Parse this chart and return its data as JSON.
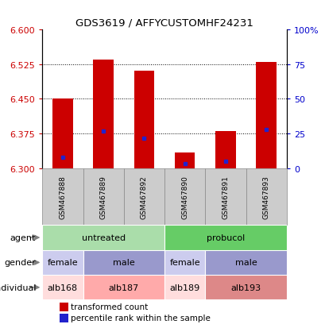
{
  "title": "GDS3619 / AFFYCUSTOMHF24231",
  "samples": [
    "GSM467888",
    "GSM467889",
    "GSM467892",
    "GSM467890",
    "GSM467891",
    "GSM467893"
  ],
  "bar_bottoms": [
    6.3,
    6.3,
    6.3,
    6.3,
    6.3,
    6.3
  ],
  "bar_tops": [
    6.45,
    6.535,
    6.51,
    6.335,
    6.38,
    6.53
  ],
  "percentile_values": [
    6.325,
    6.38,
    6.365,
    6.31,
    6.315,
    6.385
  ],
  "ylim": [
    6.3,
    6.6
  ],
  "yticks_left": [
    6.3,
    6.375,
    6.45,
    6.525,
    6.6
  ],
  "yticks_right": [
    0,
    25,
    50,
    75,
    100
  ],
  "ytick_labels_right": [
    "0",
    "25",
    "50",
    "75",
    "100%"
  ],
  "bar_color": "#cc0000",
  "percentile_color": "#2222cc",
  "agent_data": [
    {
      "text": "untreated",
      "cols": [
        0,
        1,
        2
      ],
      "color": "#aaddaa"
    },
    {
      "text": "probucol",
      "cols": [
        3,
        4,
        5
      ],
      "color": "#66cc66"
    }
  ],
  "gender_data": [
    {
      "text": "female",
      "cols": [
        0
      ],
      "color": "#ccccee"
    },
    {
      "text": "male",
      "cols": [
        1,
        2
      ],
      "color": "#9999cc"
    },
    {
      "text": "female",
      "cols": [
        3
      ],
      "color": "#ccccee"
    },
    {
      "text": "male",
      "cols": [
        4,
        5
      ],
      "color": "#9999cc"
    }
  ],
  "individual_data": [
    {
      "text": "alb168",
      "cols": [
        0
      ],
      "color": "#ffdddd"
    },
    {
      "text": "alb187",
      "cols": [
        1,
        2
      ],
      "color": "#ffaaaa"
    },
    {
      "text": "alb189",
      "cols": [
        3
      ],
      "color": "#ffdddd"
    },
    {
      "text": "alb193",
      "cols": [
        4,
        5
      ],
      "color": "#dd8888"
    }
  ],
  "row_labels": [
    "agent",
    "gender",
    "individual"
  ],
  "legend_red": "transformed count",
  "legend_blue": "percentile rank within the sample",
  "left_color": "#cc0000",
  "right_color": "#0000cc",
  "sample_bg_color": "#cccccc",
  "sample_border_color": "#888888"
}
